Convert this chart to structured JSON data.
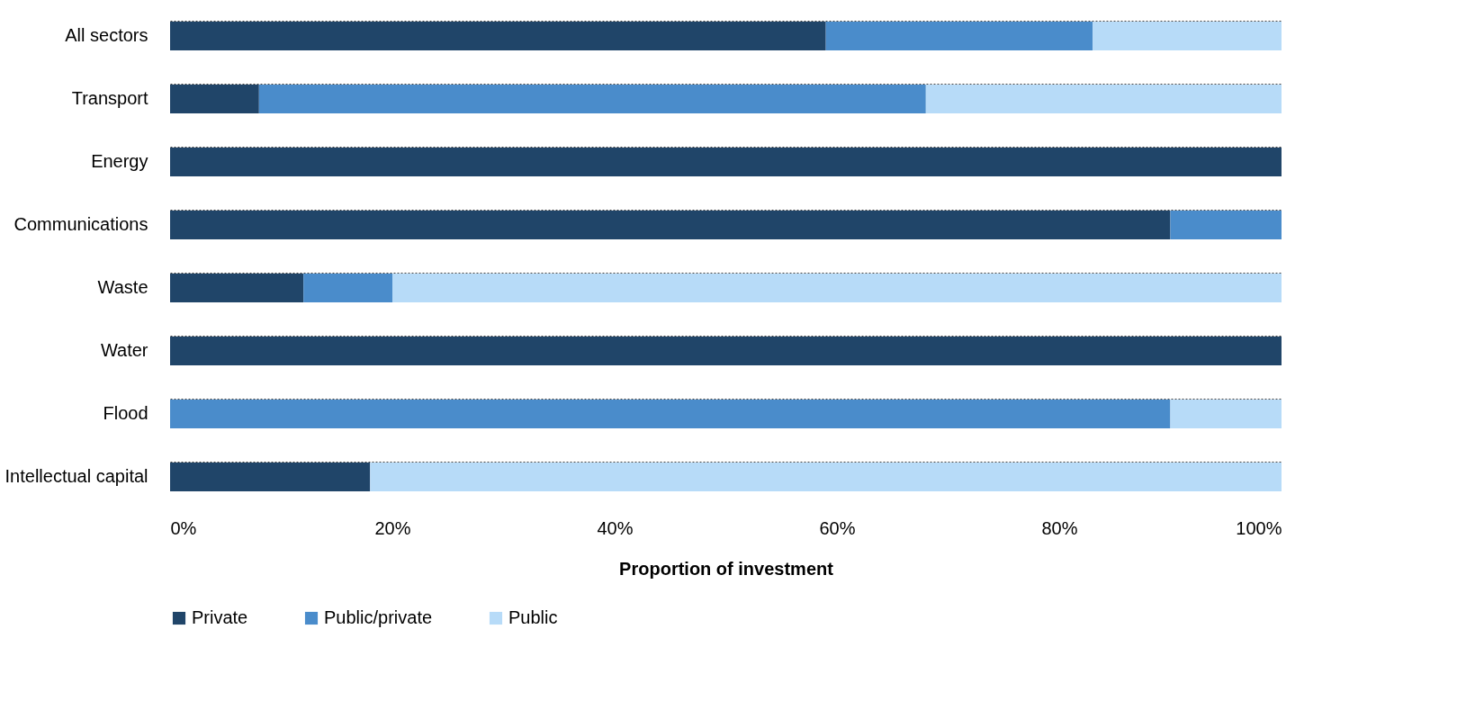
{
  "chart_data": {
    "type": "bar",
    "orientation": "horizontal",
    "stacked": true,
    "xlabel": "Proportion of investment",
    "categories": [
      "All sectors",
      "Transport",
      "Energy",
      "Communications",
      "Waste",
      "Water",
      "Flood",
      "Intellectual capital"
    ],
    "series": [
      {
        "name": "Private",
        "color": "#204569",
        "values": [
          59,
          8,
          100,
          90,
          12,
          100,
          0,
          18
        ]
      },
      {
        "name": "Public/private",
        "color": "#4a8ccb",
        "values": [
          24,
          60,
          0,
          10,
          8,
          0,
          90,
          0
        ]
      },
      {
        "name": "Public",
        "color": "#b7dbf8",
        "values": [
          17,
          32,
          0,
          0,
          80,
          0,
          10,
          82
        ]
      }
    ],
    "xlim": [
      0,
      100
    ],
    "xticks": [
      {
        "value": 0,
        "label": "0%"
      },
      {
        "value": 20,
        "label": "20%"
      },
      {
        "value": 40,
        "label": "40%"
      },
      {
        "value": 60,
        "label": "60%"
      },
      {
        "value": 80,
        "label": "80%"
      },
      {
        "value": 100,
        "label": "100%"
      }
    ],
    "grid": "y",
    "legend": "bottom"
  }
}
